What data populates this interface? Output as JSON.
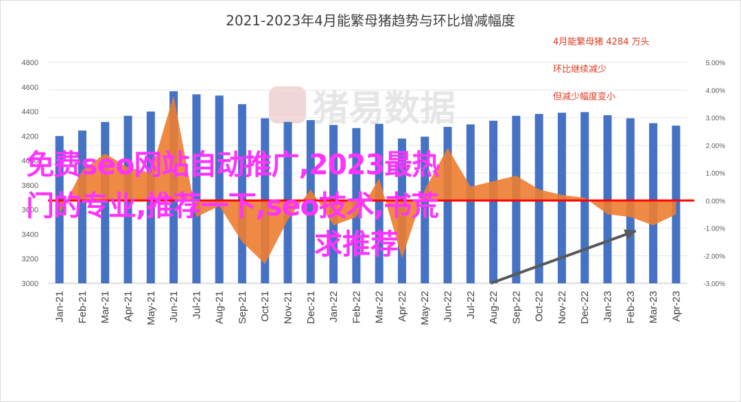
{
  "chart_data": {
    "type": "bar",
    "title": "2021-2023年4月能繁母猪趋势与环比增减幅度",
    "categories": [
      "Jan-21",
      "Feb-21",
      "Mar-21",
      "Apr-21",
      "May-21",
      "Jun-21",
      "Jul-21",
      "Aug-21",
      "Sep-21",
      "Oct-21",
      "Nov-21",
      "Dec-21",
      "Jan-22",
      "Feb-22",
      "Mar-22",
      "Apr-22",
      "May-22",
      "Jun-22",
      "Jul-22",
      "Aug-22",
      "Sep-22",
      "Oct-22",
      "Nov-22",
      "Dec-22",
      "Jan-23",
      "Feb-23",
      "Mar-23",
      "Apr-23"
    ],
    "series": [
      {
        "axis": "left",
        "kind": "bar",
        "color": "#4472c4",
        "values": [
          4200,
          4245,
          4315,
          4365,
          4400,
          4565,
          4540,
          4530,
          4460,
          4345,
          4315,
          4330,
          4290,
          4265,
          4300,
          4180,
          4195,
          4275,
          4295,
          4325,
          4365,
          4380,
          4390,
          4395,
          4370,
          4345,
          4305,
          4285
        ]
      },
      {
        "axis": "right",
        "kind": "area",
        "color": "#ed7d31",
        "values": [
          -0.5,
          1.1,
          1.7,
          1.2,
          1.0,
          3.8,
          -0.6,
          -0.2,
          -1.5,
          -2.3,
          -0.7,
          0.4,
          -0.9,
          -0.6,
          0.8,
          -2.1,
          0.4,
          1.9,
          0.5,
          0.7,
          0.9,
          0.4,
          0.2,
          0.1,
          -0.5,
          -0.6,
          -0.9,
          -0.5
        ]
      }
    ],
    "y_left": {
      "min": 3000,
      "max": 4800,
      "ticks": [
        "4800",
        "4600",
        "4400",
        "4200",
        "4000",
        "3800",
        "3600",
        "3400",
        "3200",
        "3000"
      ]
    },
    "y_right": {
      "min": -3,
      "max": 5,
      "ticks": [
        "5.00%",
        "4.00%",
        "3.00%",
        "2.00%",
        "1.00%",
        "0.00%",
        "-1.00%",
        "-2.00%",
        "-3.00%"
      ]
    },
    "zero_line_color": "#ff0000",
    "annotations": [
      "4月能繁母猪 4284 万头",
      "环比继续减少",
      "但减少幅度变小"
    ],
    "watermark": "猪易数据",
    "overlay_text": [
      "免费seo网站自动推广,2023最热",
      "门的专业,推荐一下,seo技术,书荒",
      "求推荐"
    ]
  }
}
